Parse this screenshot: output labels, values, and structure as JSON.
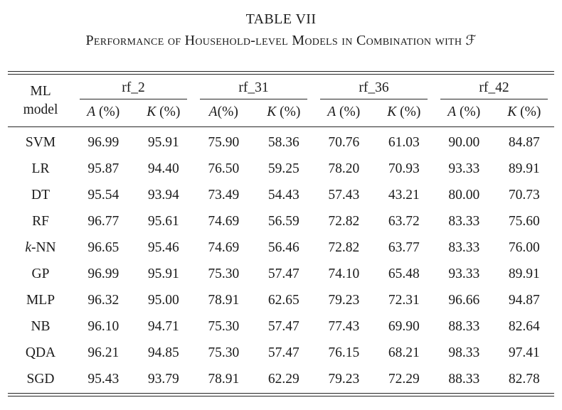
{
  "title": "TABLE VII",
  "subtitle": "Performance of Household-level Models in Combination with",
  "subtitle_symbol": "ℱ",
  "table": {
    "header_col": {
      "line1": "ML",
      "line2": "model"
    },
    "groups": [
      {
        "label": "rf_2",
        "sub": [
          {
            "letter": "A",
            "rest": " (%)"
          },
          {
            "letter": "K",
            "rest": " (%)"
          }
        ]
      },
      {
        "label": "rf_31",
        "sub": [
          {
            "letter": "A",
            "rest": "(%)"
          },
          {
            "letter": "K",
            "rest": " (%)"
          }
        ]
      },
      {
        "label": "rf_36",
        "sub": [
          {
            "letter": "A",
            "rest": " (%)"
          },
          {
            "letter": "K",
            "rest": " (%)"
          }
        ]
      },
      {
        "label": "rf_42",
        "sub": [
          {
            "letter": "A",
            "rest": " (%)"
          },
          {
            "letter": "K",
            "rest": " (%)"
          }
        ]
      }
    ],
    "rows": [
      {
        "model": "SVM",
        "values": [
          "96.99",
          "95.91",
          "75.90",
          "58.36",
          "70.76",
          "61.03",
          "90.00",
          "84.87"
        ]
      },
      {
        "model": "LR",
        "values": [
          "95.87",
          "94.40",
          "76.50",
          "59.25",
          "78.20",
          "70.93",
          "93.33",
          "89.91"
        ]
      },
      {
        "model": "DT",
        "values": [
          "95.54",
          "93.94",
          "73.49",
          "54.43",
          "57.43",
          "43.21",
          "80.00",
          "70.73"
        ]
      },
      {
        "model": "RF",
        "values": [
          "96.77",
          "95.61",
          "74.69",
          "56.59",
          "72.82",
          "63.72",
          "83.33",
          "75.60"
        ]
      },
      {
        "model": "k-NN",
        "italic_first": true,
        "values": [
          "96.65",
          "95.46",
          "74.69",
          "56.46",
          "72.82",
          "63.77",
          "83.33",
          "76.00"
        ]
      },
      {
        "model": "GP",
        "values": [
          "96.99",
          "95.91",
          "75.30",
          "57.47",
          "74.10",
          "65.48",
          "93.33",
          "89.91"
        ]
      },
      {
        "model": "MLP",
        "values": [
          "96.32",
          "95.00",
          "78.91",
          "62.65",
          "79.23",
          "72.31",
          "96.66",
          "94.87"
        ]
      },
      {
        "model": "NB",
        "values": [
          "96.10",
          "94.71",
          "75.30",
          "57.47",
          "77.43",
          "69.90",
          "88.33",
          "82.64"
        ]
      },
      {
        "model": "QDA",
        "values": [
          "96.21",
          "94.85",
          "75.30",
          "57.47",
          "76.15",
          "68.21",
          "98.33",
          "97.41"
        ]
      },
      {
        "model": "SGD",
        "values": [
          "95.43",
          "93.79",
          "78.91",
          "62.29",
          "79.23",
          "72.29",
          "88.33",
          "82.78"
        ]
      }
    ]
  }
}
